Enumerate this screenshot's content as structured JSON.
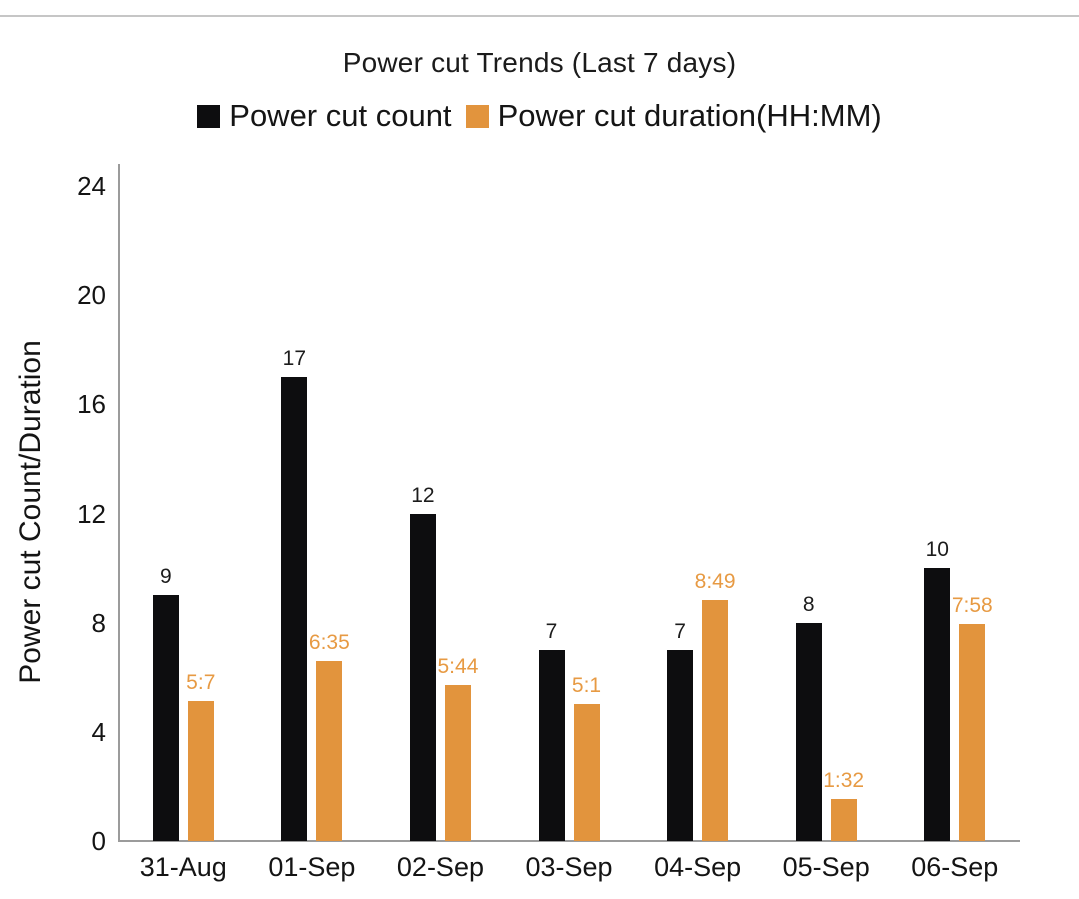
{
  "chart_data": {
    "type": "bar",
    "title": "Power cut Trends (Last 7 days)",
    "ylabel": "Power cut Count/Duration",
    "xlabel": "",
    "ylim": [
      0,
      24
    ],
    "yticks": [
      0,
      4,
      8,
      12,
      16,
      20,
      24
    ],
    "grid": false,
    "legend_position": "top",
    "axis_color": "#9b9b9b",
    "categories": [
      "31-Aug",
      "01-Sep",
      "02-Sep",
      "03-Sep",
      "04-Sep",
      "05-Sep",
      "06-Sep"
    ],
    "series": [
      {
        "name": "Power cut count",
        "color": "#0d0d0f",
        "label_color": "#1c1c1c",
        "values": [
          9,
          17,
          12,
          7,
          7,
          8,
          10
        ],
        "labels": [
          "9",
          "17",
          "12",
          "7",
          "7",
          "8",
          "10"
        ]
      },
      {
        "name": "Power cut duration(HH:MM)",
        "color": "#e2943d",
        "label_color": "#e79a43",
        "values": [
          5.12,
          6.58,
          5.73,
          5.02,
          8.82,
          1.53,
          7.97
        ],
        "labels": [
          "5:7",
          "6:35",
          "5:44",
          "5:1",
          "8:49",
          "1:32",
          "7:58"
        ]
      }
    ]
  }
}
